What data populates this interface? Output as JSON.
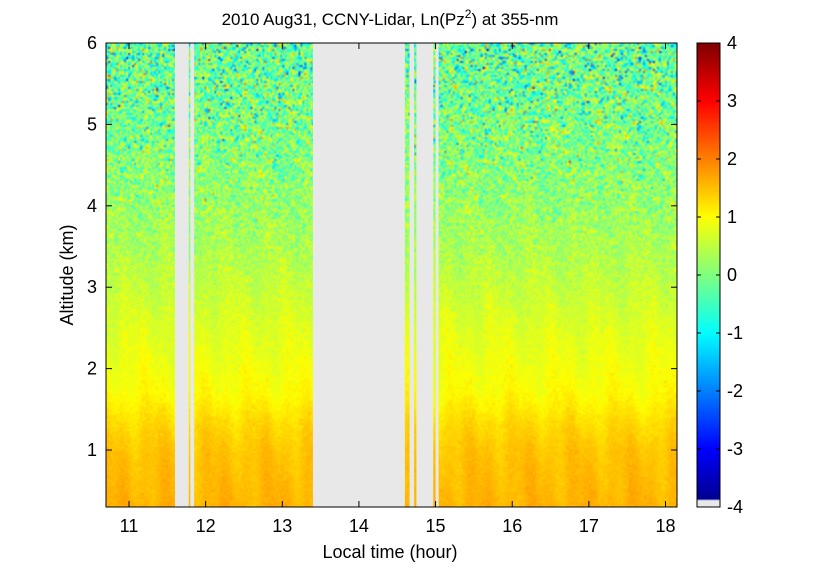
{
  "chart_data": {
    "type": "heatmap",
    "title": {
      "prefix": "2010 Aug31, CCNY-Lidar, Ln(Pz",
      "superscript": "2",
      "suffix": ") at 355-nm"
    },
    "xlabel": "Local time (hour)",
    "ylabel": "Altitude (km)",
    "xlim": [
      10.7,
      18.15
    ],
    "ylim": [
      0.3,
      6.0
    ],
    "xticks": [
      11,
      12,
      13,
      14,
      15,
      16,
      17,
      18
    ],
    "yticks": [
      1,
      2,
      3,
      4,
      5,
      6
    ],
    "colorbar": {
      "min": -4,
      "max": 4,
      "ticks": [
        4,
        3,
        2,
        1,
        0,
        -1,
        -2,
        -3,
        -4
      ],
      "colormap": "jet",
      "nodata_color": "#e8e8e8"
    },
    "data_gaps_hours": [
      [
        11.6,
        11.78
      ],
      [
        11.8,
        11.85
      ],
      [
        13.4,
        14.6
      ],
      [
        14.66,
        14.72
      ],
      [
        14.75,
        14.97
      ],
      [
        15.0,
        15.04
      ]
    ],
    "altitude_profile": {
      "altitude_km": [
        0.3,
        0.5,
        0.8,
        1.0,
        1.3,
        1.5,
        1.7,
        2.0,
        2.5,
        3.0,
        3.5,
        4.0,
        4.5,
        5.0,
        5.5,
        6.0
      ],
      "ln_pz2": [
        1.6,
        1.55,
        1.5,
        1.45,
        1.3,
        1.15,
        1.0,
        0.9,
        0.75,
        0.55,
        0.35,
        0.2,
        0.05,
        -0.05,
        -0.15,
        -0.25
      ],
      "noise_std": [
        0.05,
        0.05,
        0.05,
        0.05,
        0.06,
        0.06,
        0.07,
        0.08,
        0.1,
        0.15,
        0.25,
        0.4,
        0.55,
        0.7,
        0.8,
        0.9
      ]
    }
  }
}
